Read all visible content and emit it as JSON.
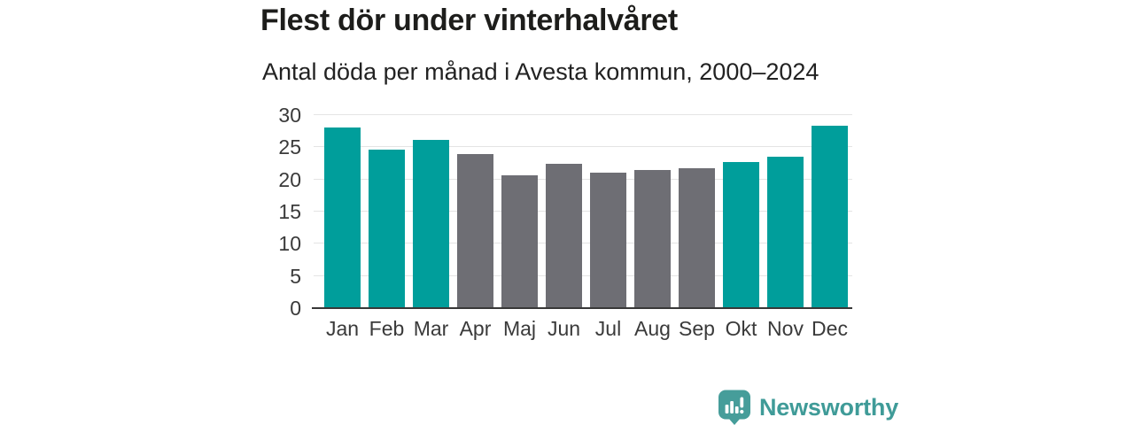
{
  "header": {
    "title": "Flest dör under vinterhalvåret",
    "subtitle": "Antal döda per månad i Avesta kommun, 2000–2024"
  },
  "chart_data": {
    "type": "bar",
    "title": "Flest dör under vinterhalvåret",
    "subtitle": "Antal döda per månad i Avesta kommun, 2000–2024",
    "categories": [
      "Jan",
      "Feb",
      "Mar",
      "Apr",
      "Maj",
      "Jun",
      "Jul",
      "Aug",
      "Sep",
      "Okt",
      "Nov",
      "Dec"
    ],
    "values": [
      28.1,
      24.7,
      26.1,
      23.9,
      20.7,
      22.4,
      21.1,
      21.5,
      21.7,
      22.7,
      23.6,
      28.4
    ],
    "highlighted": [
      true,
      true,
      true,
      false,
      false,
      false,
      false,
      false,
      false,
      true,
      true,
      true
    ],
    "highlight_color": "#009E9B",
    "base_color": "#6E6E74",
    "xlabel": "",
    "ylabel": "",
    "ylim": [
      0,
      30
    ],
    "yticks": [
      0,
      5,
      10,
      15,
      20,
      25,
      30
    ],
    "grid": true,
    "legend": false
  },
  "footer": {
    "brand_label": "Newsworthy",
    "logo_icon": "bar-chart-speech-bubble-icon",
    "brand_color": "#3F9B98",
    "logo_color": "#469D9A"
  }
}
